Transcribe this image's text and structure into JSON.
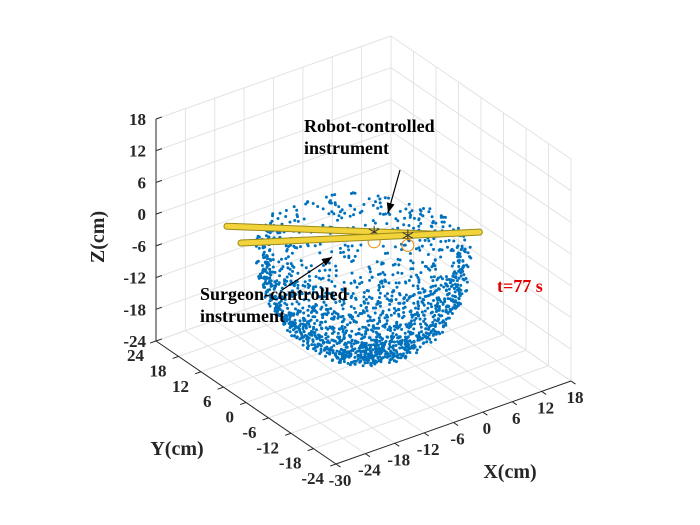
{
  "chart_data": {
    "type": "scatter",
    "title": "",
    "xlabel": "X(cm)",
    "ylabel": "Y(cm)",
    "zlabel": "Z(cm)",
    "xlim": [
      -30,
      18
    ],
    "ylim": [
      -24,
      24
    ],
    "zlim": [
      -24,
      18
    ],
    "x_ticks": [
      "-30",
      "-24",
      "-18",
      "-12",
      "-6",
      "0",
      "6",
      "12",
      "18"
    ],
    "y_ticks": [
      "-24",
      "-18",
      "-12",
      "-6",
      "0",
      "6",
      "12",
      "18",
      "24"
    ],
    "z_ticks": [
      "-24",
      "-18",
      "-12",
      "-6",
      "0",
      "6",
      "12",
      "18"
    ],
    "grid": true,
    "view": "3d-isometric",
    "point_cloud": {
      "color": "#0072BD",
      "shape": "hemispherical shell (bowl), denser near the bottom",
      "center": [
        -6,
        0,
        -4
      ],
      "radius": 17
    },
    "instruments": [
      {
        "label": "Robot-controlled\ninstrument",
        "color": "#F2D33B",
        "tip_marker": "asterisk",
        "start": [
          -27,
          9,
          4
        ],
        "end": [
          6,
          -4,
          -2
        ]
      },
      {
        "label": "Surgeon-controlled\ninstrument",
        "color": "#F2D33B",
        "tip_marker": "asterisk",
        "start": [
          -18,
          17,
          -6
        ],
        "end": [
          10,
          -10,
          0
        ]
      }
    ],
    "time_label": "t=77 s",
    "time_label_color": "#E00000"
  }
}
